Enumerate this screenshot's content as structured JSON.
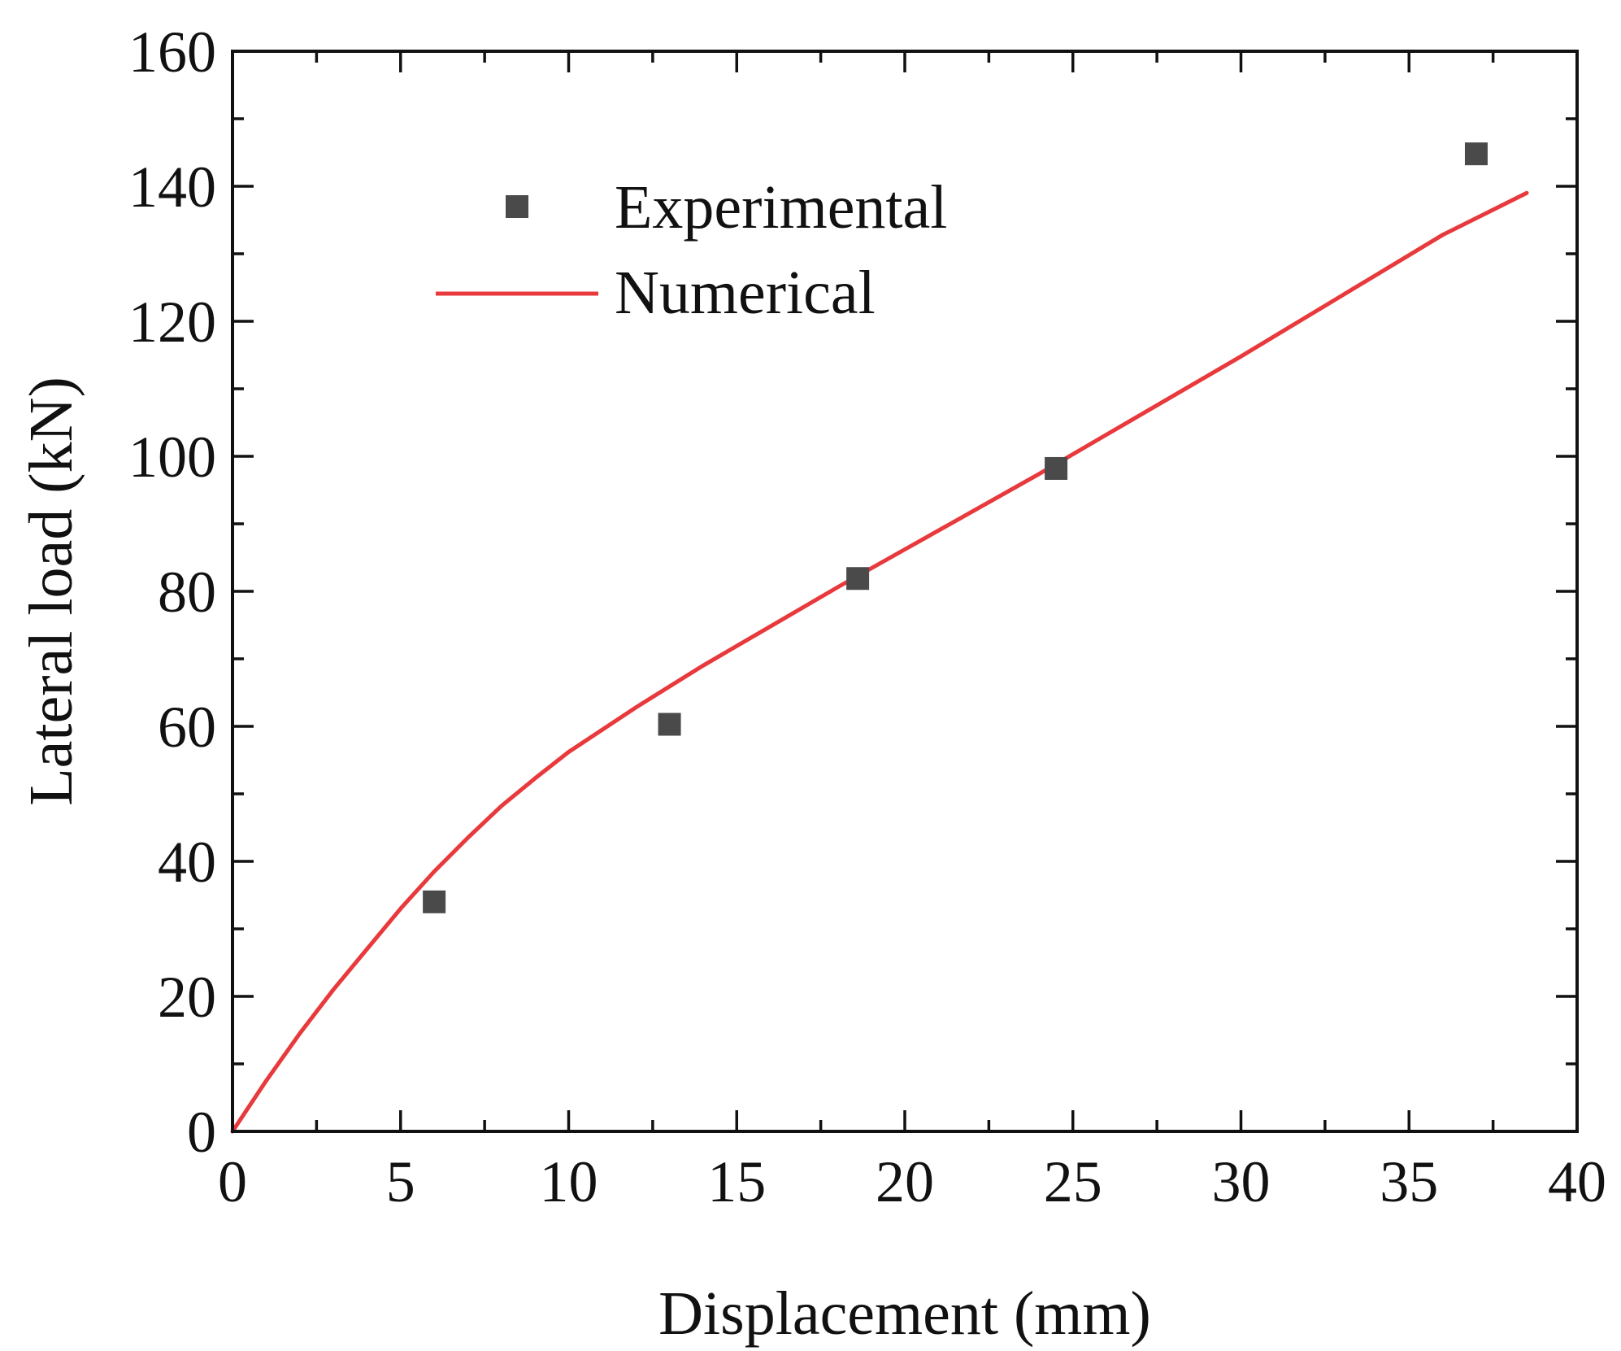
{
  "chart_data": {
    "type": "scatter",
    "xlabel": "Displacement (mm)",
    "ylabel": "Lateral load (kN)",
    "xlim": [
      0,
      40
    ],
    "ylim": [
      0,
      160
    ],
    "xticks": [
      0,
      5,
      10,
      15,
      20,
      25,
      30,
      35,
      40
    ],
    "yticks": [
      0,
      20,
      40,
      60,
      80,
      100,
      120,
      140,
      160
    ],
    "legend_position": "top-left",
    "colors": {
      "experimental": "#4a4a4a",
      "numerical": "#e8393c",
      "axis": "#111111"
    },
    "series": [
      {
        "name": "Experimental",
        "kind": "scatter",
        "marker": "square",
        "x": [
          6.0,
          13.0,
          18.6,
          24.5,
          37.0
        ],
        "y": [
          34.0,
          60.3,
          81.9,
          98.2,
          144.8
        ]
      },
      {
        "name": "Numerical",
        "kind": "line",
        "x": [
          0,
          1,
          2,
          3,
          4,
          5,
          6,
          7,
          8,
          9,
          10,
          12,
          14,
          16,
          18,
          20,
          22,
          24,
          26,
          28,
          30,
          32,
          34,
          36,
          38.5
        ],
        "y": [
          0,
          7.5,
          14.5,
          21.0,
          27.0,
          33.0,
          38.5,
          43.5,
          48.2,
          52.3,
          56.2,
          62.8,
          69.0,
          74.8,
          80.6,
          86.2,
          91.8,
          97.4,
          103.2,
          109.0,
          114.8,
          120.8,
          126.8,
          132.8,
          139.0
        ]
      }
    ]
  }
}
